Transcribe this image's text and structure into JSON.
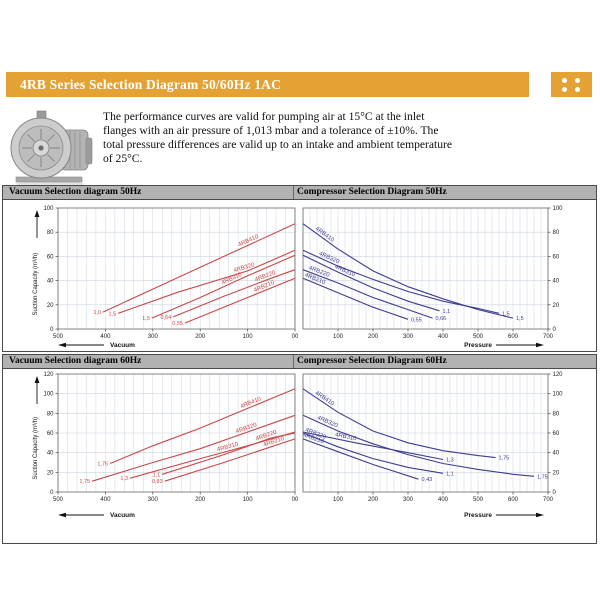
{
  "header": {
    "title": "4RB Series Selection Diagram 50/60Hz 1AC",
    "accent_color": "#E3A233",
    "dots_icon": "four-dots-grid"
  },
  "intro": {
    "text": "The performance curves are valid for pumping air at 15°C at the inlet flanges with an air pressure of 1,013 mbar and a tolerance of ±10%. The total pressure differences are valid up to an intake and ambient temperature of 25°C."
  },
  "blower_image": "side-channel-blower-photo",
  "sections": [
    {
      "left_title": "Vacuum Selection diagram 50Hz",
      "right_title": "Compressor Selection Diagram 50Hz"
    },
    {
      "left_title": "Vacuum Selection diagram 60Hz",
      "right_title": "Compressor Selection Diagram 60Hz"
    }
  ],
  "colors": {
    "vacuum_line": "#CC4747",
    "compressor_line": "#3D3D94",
    "grid": "#ccd4e0",
    "section_header_bg": "#b2b2b2"
  },
  "chart_data": [
    {
      "id": "vacuum-50hz",
      "type": "line",
      "title": "Vacuum Selection diagram 50Hz",
      "xlabel": "Vacuum",
      "ylabel": "Suction Capacity (m³/h)",
      "x_direction": "reversed",
      "xlim": [
        0,
        500
      ],
      "ylim": [
        0,
        100
      ],
      "x_ticks": [
        {
          "value": 500,
          "label": "500"
        },
        {
          "value": 400,
          "label": "400"
        },
        {
          "value": 300,
          "label": "300"
        },
        {
          "value": 200,
          "label": "200"
        },
        {
          "value": 100,
          "label": "100"
        },
        {
          "value": 0,
          "label": "00"
        }
      ],
      "y_ticks": [
        0,
        20,
        40,
        60,
        80,
        100
      ],
      "series_color": "#CC4747",
      "series": [
        {
          "name": "4RB410",
          "power_label": "1,0",
          "label_x": 95,
          "points": [
            [
              405,
              14
            ],
            [
              300,
              33
            ],
            [
              200,
              51
            ],
            [
              100,
              69
            ],
            [
              0,
              87
            ]
          ]
        },
        {
          "name": "4RB320",
          "power_label": "1,5",
          "label_x": 105,
          "points": [
            [
              373,
              13
            ],
            [
              250,
              30
            ],
            [
              100,
              48
            ],
            [
              0,
              65
            ]
          ]
        },
        {
          "name": "4RB310",
          "power_label": "1,5",
          "label_x": 130,
          "points": [
            [
              302,
              9
            ],
            [
              200,
              26
            ],
            [
              100,
              44
            ],
            [
              0,
              61
            ]
          ]
        },
        {
          "name": "4RB220",
          "power_label": "0,64",
          "label_x": 60,
          "points": [
            [
              257,
              10
            ],
            [
              150,
              27
            ],
            [
              50,
              42
            ],
            [
              0,
              49
            ]
          ]
        },
        {
          "name": "4RB210",
          "power_label": "0,55",
          "label_x": 62,
          "points": [
            [
              232,
              5
            ],
            [
              100,
              26
            ],
            [
              0,
              42
            ]
          ]
        }
      ]
    },
    {
      "id": "compressor-50hz",
      "type": "line",
      "title": "Compressor Selection Diagram 50Hz",
      "xlabel": "Pressure",
      "ylabel": "",
      "x_direction": "normal",
      "xlim": [
        0,
        700
      ],
      "ylim": [
        0,
        100
      ],
      "x_ticks": [
        {
          "value": 0,
          "label": "00"
        },
        {
          "value": 100,
          "label": "100"
        },
        {
          "value": 200,
          "label": "200"
        },
        {
          "value": 300,
          "label": "300"
        },
        {
          "value": 400,
          "label": "400"
        },
        {
          "value": 500,
          "label": "500"
        },
        {
          "value": 600,
          "label": "600"
        },
        {
          "value": 700,
          "label": "700"
        }
      ],
      "y_ticks": [
        0,
        20,
        40,
        60,
        80,
        100
      ],
      "series_color": "#3D3D94",
      "series": [
        {
          "name": "4RB410",
          "power_label": "1,5",
          "label_x": 55,
          "points": [
            [
              0,
              87
            ],
            [
              100,
              66
            ],
            [
              200,
              48
            ],
            [
              300,
              35
            ],
            [
              400,
              25
            ],
            [
              500,
              16
            ],
            [
              600,
              9
            ]
          ]
        },
        {
          "name": "4RB320",
          "power_label": "1,5",
          "label_x": 70,
          "points": [
            [
              0,
              65
            ],
            [
              100,
              52
            ],
            [
              200,
              41
            ],
            [
              300,
              31
            ],
            [
              400,
              23
            ],
            [
              500,
              17
            ],
            [
              560,
              13
            ]
          ]
        },
        {
          "name": "4RB310",
          "power_label": "1,1",
          "label_x": 115,
          "points": [
            [
              0,
              61
            ],
            [
              100,
              47
            ],
            [
              200,
              34
            ],
            [
              300,
              23
            ],
            [
              390,
              15
            ]
          ]
        },
        {
          "name": "4RB220",
          "power_label": "0,66",
          "label_x": 42,
          "points": [
            [
              0,
              49
            ],
            [
              100,
              38
            ],
            [
              200,
              26
            ],
            [
              300,
              16
            ],
            [
              370,
              9
            ]
          ]
        },
        {
          "name": "4RB210",
          "power_label": "0,55",
          "label_x": 30,
          "points": [
            [
              0,
              42
            ],
            [
              100,
              30
            ],
            [
              200,
              18
            ],
            [
              300,
              8
            ]
          ]
        }
      ]
    },
    {
      "id": "vacuum-60hz",
      "type": "line",
      "title": "Vacuum Selection diagram 60Hz",
      "xlabel": "Vacuum",
      "ylabel": "Suction Capacity (m³/h)",
      "x_direction": "reversed",
      "xlim": [
        0,
        500
      ],
      "ylim": [
        0,
        120
      ],
      "x_ticks": [
        {
          "value": 500,
          "label": "500"
        },
        {
          "value": 400,
          "label": "400"
        },
        {
          "value": 300,
          "label": "300"
        },
        {
          "value": 200,
          "label": "200"
        },
        {
          "value": 100,
          "label": "100"
        },
        {
          "value": 0,
          "label": "00"
        }
      ],
      "y_ticks": [
        0,
        20,
        40,
        60,
        80,
        100,
        120
      ],
      "series_color": "#CC4747",
      "series": [
        {
          "name": "4RB410",
          "power_label": "1,75",
          "label_x": 90,
          "points": [
            [
              390,
              29
            ],
            [
              300,
              47
            ],
            [
              200,
              65
            ],
            [
              100,
              85
            ],
            [
              0,
              105
            ]
          ]
        },
        {
          "name": "4RB320",
          "power_label": "1,75",
          "label_x": 100,
          "points": [
            [
              428,
              11
            ],
            [
              300,
              30
            ],
            [
              200,
              44
            ],
            [
              100,
              61
            ],
            [
              0,
              78
            ]
          ]
        },
        {
          "name": "4RB310",
          "power_label": "1,3",
          "label_x": 140,
          "points": [
            [
              348,
              14
            ],
            [
              200,
              34
            ],
            [
              100,
              47
            ],
            [
              0,
              61
            ]
          ]
        },
        {
          "name": "4RB220",
          "power_label": "1,1",
          "label_x": 58,
          "points": [
            [
              280,
              18
            ],
            [
              150,
              38
            ],
            [
              50,
              55
            ],
            [
              0,
              60
            ]
          ]
        },
        {
          "name": "4RB210",
          "power_label": "0,83",
          "label_x": 42,
          "points": [
            [
              275,
              11
            ],
            [
              150,
              30
            ],
            [
              0,
              54
            ]
          ]
        }
      ]
    },
    {
      "id": "compressor-60hz",
      "type": "line",
      "title": "Compressor Selection Diagram 60Hz",
      "xlabel": "Pressure",
      "ylabel": "",
      "x_direction": "normal",
      "xlim": [
        0,
        700
      ],
      "ylim": [
        0,
        120
      ],
      "x_ticks": [
        {
          "value": 0,
          "label": "00"
        },
        {
          "value": 100,
          "label": "100"
        },
        {
          "value": 200,
          "label": "200"
        },
        {
          "value": 300,
          "label": "300"
        },
        {
          "value": 400,
          "label": "400"
        },
        {
          "value": 500,
          "label": "500"
        },
        {
          "value": 600,
          "label": "600"
        },
        {
          "value": 700,
          "label": "700"
        }
      ],
      "y_ticks": [
        0,
        20,
        40,
        60,
        80,
        100,
        120
      ],
      "series_color": "#3D3D94",
      "series": [
        {
          "name": "4RB410",
          "power_label": "1,75",
          "label_x": 55,
          "points": [
            [
              0,
              105
            ],
            [
              100,
              81
            ],
            [
              200,
              62
            ],
            [
              300,
              50
            ],
            [
              400,
              42
            ],
            [
              500,
              37
            ],
            [
              550,
              35
            ]
          ]
        },
        {
          "name": "4RB320",
          "power_label": "1,75",
          "label_x": 65,
          "points": [
            [
              0,
              78
            ],
            [
              100,
              62
            ],
            [
              200,
              49
            ],
            [
              300,
              38
            ],
            [
              400,
              29
            ],
            [
              500,
              23
            ],
            [
              600,
              18
            ],
            [
              660,
              16
            ]
          ]
        },
        {
          "name": "4RB310",
          "power_label": "1,3",
          "label_x": 120,
          "points": [
            [
              0,
              61
            ],
            [
              150,
              50
            ],
            [
              300,
              40
            ],
            [
              400,
              33
            ]
          ]
        },
        {
          "name": "4RB220",
          "power_label": "1,1",
          "label_x": 32,
          "points": [
            [
              0,
              60
            ],
            [
              100,
              46
            ],
            [
              200,
              34
            ],
            [
              300,
              25
            ],
            [
              400,
              19
            ]
          ]
        },
        {
          "name": "4RB210",
          "power_label": "0,43",
          "label_x": 26,
          "points": [
            [
              0,
              54
            ],
            [
              100,
              41
            ],
            [
              200,
              28
            ],
            [
              330,
              13
            ]
          ]
        }
      ]
    }
  ]
}
